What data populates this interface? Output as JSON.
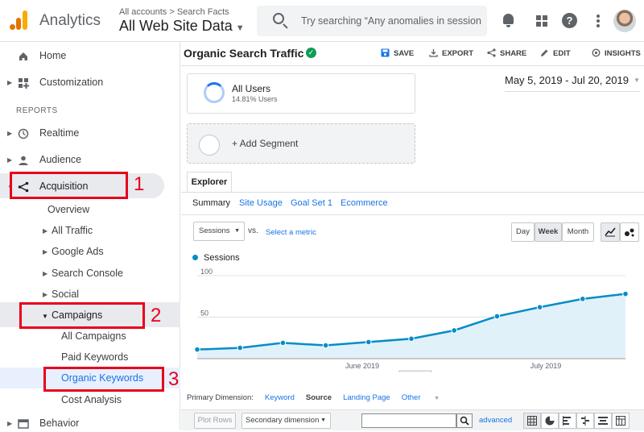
{
  "header": {
    "app_title": "Analytics",
    "breadcrumb": "All accounts > Search Facts",
    "property": "All Web Site Data",
    "search_placeholder": "Try searching “Any anomalies in session”"
  },
  "sidebar": {
    "home": "Home",
    "customization": "Customization",
    "reports_heading": "REPORTS",
    "realtime": "Realtime",
    "audience": "Audience",
    "acquisition": "Acquisition",
    "overview": "Overview",
    "all_traffic": "All Traffic",
    "google_ads": "Google Ads",
    "search_console": "Search Console",
    "social": "Social",
    "campaigns": "Campaigns",
    "all_campaigns": "All Campaigns",
    "paid_keywords": "Paid Keywords",
    "organic_keywords": "Organic Keywords",
    "cost_analysis": "Cost Analysis",
    "behavior": "Behavior"
  },
  "annotations": {
    "n1": "1",
    "n2": "2",
    "n3": "3"
  },
  "report": {
    "title": "Organic Search Traffic",
    "actions": {
      "save": "SAVE",
      "export": "EXPORT",
      "share": "SHARE",
      "edit": "EDIT",
      "insights": "INSIGHTS"
    },
    "segment_name": "All Users",
    "segment_pct": "14.81% Users",
    "add_segment": "+ Add Segment",
    "date_range": "May 5, 2019 - Jul 20, 2019",
    "tab": "Explorer",
    "subtabs": {
      "summary": "Summary",
      "site_usage": "Site Usage",
      "goal_set": "Goal Set 1",
      "ecommerce": "Ecommerce"
    },
    "metric_select": "Sessions",
    "vs": "vs.",
    "select_metric": "Select a metric",
    "granularity": {
      "day": "Day",
      "week": "Week",
      "month": "Month"
    },
    "primary_dimension_label": "Primary Dimension:",
    "dimensions": {
      "keyword": "Keyword",
      "source": "Source",
      "landing_page": "Landing Page",
      "other": "Other"
    },
    "plot_rows": "Plot Rows",
    "secondary_dimension": "Secondary dimension",
    "advanced": "advanced"
  },
  "chart_data": {
    "type": "area",
    "series": [
      {
        "name": "Sessions",
        "values": [
          11,
          13,
          19,
          16,
          20,
          24,
          34,
          51,
          62,
          72,
          78
        ]
      }
    ],
    "ylim": [
      0,
      100
    ],
    "yticks": [
      "100",
      "50"
    ],
    "xticks": [
      "June 2019",
      "July 2019"
    ],
    "colors": {
      "line": "#058dc7",
      "fill": "#e1f1f9"
    }
  }
}
